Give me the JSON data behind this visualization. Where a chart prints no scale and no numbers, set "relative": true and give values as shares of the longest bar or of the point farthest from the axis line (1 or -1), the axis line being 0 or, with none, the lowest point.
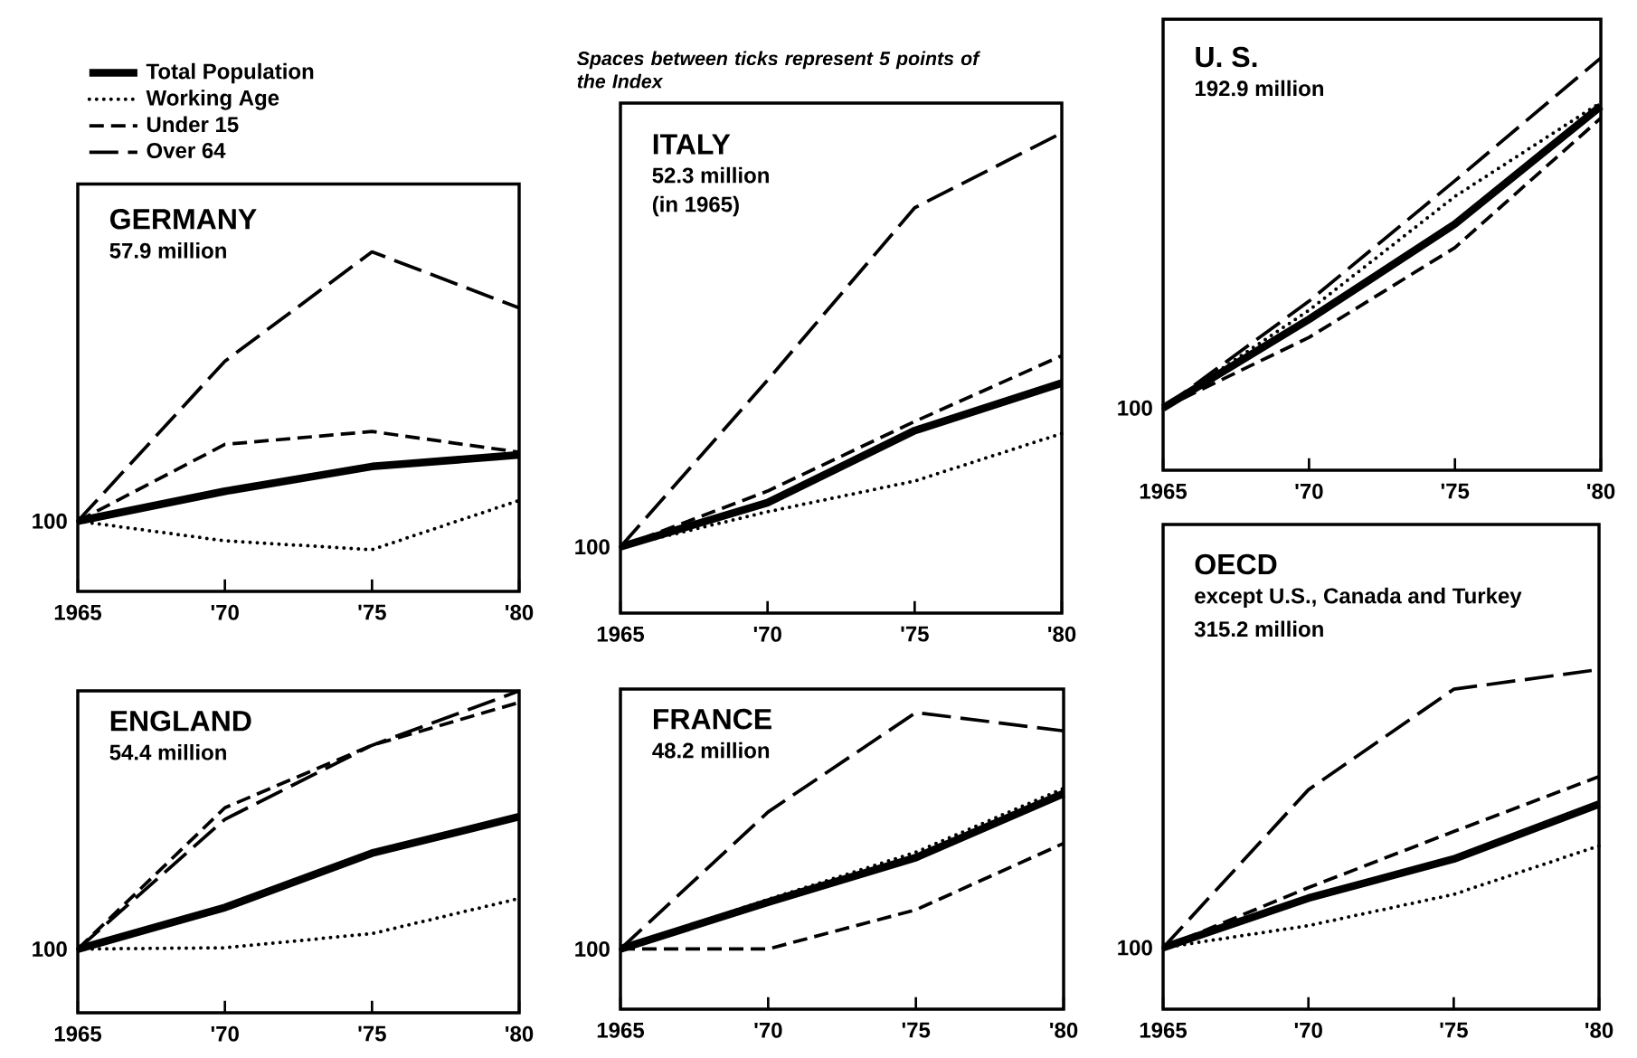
{
  "chart_data": [
    {
      "type": "line",
      "title": "GERMANY",
      "relative": true,
      "legend": "top left",
      "annotations": [
        "57.9 million",
        "100"
      ],
      "x": [
        1965,
        1970,
        1975,
        1980
      ],
      "xlim": [
        1965,
        1980
      ],
      "xticks": [
        1965,
        {
          "value": 1970,
          "label": "'70"
        },
        {
          "value": 1975,
          "label": "'75"
        },
        {
          "value": 1980,
          "label": "'80"
        }
      ],
      "series": [
        {
          "name": "Total Population",
          "color": "#000000",
          "line_style": "solid",
          "values": [
            0.207,
            0.295,
            0.368,
            0.402
          ]
        },
        {
          "name": "Working Age",
          "color": "#000000",
          "line_style": "dotted",
          "values": [
            0.207,
            0.149,
            0.123,
            0.268
          ]
        },
        {
          "name": "Under 15",
          "color": "#000000",
          "line_style": "dashed",
          "values": [
            0.207,
            0.433,
            0.471,
            0.41
          ]
        },
        {
          "name": "Over 64",
          "color": "#000000",
          "line_style": "dashed",
          "values": [
            0.207,
            0.678,
            1,
            0.835
          ]
        }
      ]
    },
    {
      "type": "line",
      "title": "ITALY",
      "relative": true,
      "subtitle": "Spaces between ticks represent 5 points of the Index",
      "annotations": [
        "52.3 million",
        "(in 1965)",
        "100"
      ],
      "x": [
        1965,
        1970,
        1975,
        1980
      ],
      "xlim": [
        1965,
        1980
      ],
      "xticks": [
        1965,
        {
          "value": 1970,
          "label": "'70"
        },
        {
          "value": 1975,
          "label": "'75"
        },
        {
          "value": 1980,
          "label": "'80"
        }
      ],
      "series": [
        {
          "color": "#000000",
          "line_style": "solid",
          "values": [
            0.138,
            0.23,
            0.38,
            0.479
          ]
        },
        {
          "color": "#000000",
          "line_style": "dotted",
          "values": [
            0.138,
            0.211,
            0.275,
            0.374
          ]
        },
        {
          "color": "#000000",
          "line_style": "dashed",
          "values": [
            0.138,
            0.254,
            0.399,
            0.536
          ]
        },
        {
          "color": "#000000",
          "line_style": "dashed",
          "values": [
            0.138,
            0.485,
            0.844,
            1
          ]
        }
      ]
    },
    {
      "type": "line",
      "title": "U. S.",
      "relative": true,
      "annotations": [
        "192.9 million",
        "100"
      ],
      "x": [
        1965,
        1970,
        1975,
        1980
      ],
      "xlim": [
        1965,
        1980
      ],
      "xticks": [
        1965,
        {
          "value": 1970,
          "label": "'70"
        },
        {
          "value": 1975,
          "label": "'75"
        },
        {
          "value": 1980,
          "label": "'80"
        }
      ],
      "series": [
        {
          "color": "#000000",
          "line_style": "solid",
          "values": [
            0.151,
            0.366,
            0.597,
            0.883
          ]
        },
        {
          "color": "#000000",
          "line_style": "dotted",
          "values": [
            0.151,
            0.388,
            0.664,
            0.892
          ]
        },
        {
          "color": "#000000",
          "line_style": "dashed",
          "values": [
            0.151,
            0.322,
            0.54,
            0.854
          ]
        },
        {
          "color": "#000000",
          "line_style": "dashed",
          "values": [
            0.151,
            0.41,
            0.702,
            1
          ]
        }
      ]
    },
    {
      "type": "line",
      "title": "ENGLAND",
      "relative": true,
      "annotations": [
        "54.4 million",
        "100"
      ],
      "x": [
        1965,
        1970,
        1975,
        1980
      ],
      "xlim": [
        1965,
        1980
      ],
      "xticks": [
        1965,
        {
          "value": 1970,
          "label": "'70"
        },
        {
          "value": 1975,
          "label": "'75"
        },
        {
          "value": 1980,
          "label": "'80"
        }
      ],
      "series": [
        {
          "color": "#000000",
          "line_style": "solid",
          "values": [
            0.198,
            0.327,
            0.496,
            0.609
          ]
        },
        {
          "color": "#000000",
          "line_style": "dotted",
          "values": [
            0.198,
            0.202,
            0.246,
            0.355
          ]
        },
        {
          "color": "#000000",
          "line_style": "dashed",
          "values": [
            0.198,
            0.637,
            0.831,
            0.964
          ]
        },
        {
          "color": "#000000",
          "line_style": "dashed",
          "values": [
            0.198,
            0.601,
            0.831,
            1
          ]
        }
      ]
    },
    {
      "type": "line",
      "title": "FRANCE",
      "relative": true,
      "annotations": [
        "48.2 million",
        "100"
      ],
      "x": [
        1965,
        1970,
        1975,
        1980
      ],
      "xlim": [
        1965,
        1980
      ],
      "xticks": [
        1965,
        {
          "value": 1970,
          "label": "'70"
        },
        {
          "value": 1975,
          "label": "'75"
        },
        {
          "value": 1980,
          "label": "'80"
        }
      ],
      "series": [
        {
          "color": "#000000",
          "line_style": "solid",
          "values": [
            0.203,
            0.361,
            0.511,
            0.727
          ]
        },
        {
          "color": "#000000",
          "line_style": "dotted",
          "values": [
            0.203,
            0.37,
            0.529,
            0.744
          ]
        },
        {
          "color": "#000000",
          "line_style": "dashed",
          "values": [
            0.203,
            0.203,
            0.335,
            0.559
          ]
        },
        {
          "color": "#000000",
          "line_style": "dashed",
          "values": [
            0.203,
            0.665,
            1,
            0.938
          ]
        }
      ]
    },
    {
      "type": "line",
      "title": "OECD",
      "relative": true,
      "annotations": [
        "except U.S., Canada and Turkey",
        "315.2 million",
        "100"
      ],
      "x": [
        1965,
        1970,
        1975,
        1980
      ],
      "xlim": [
        1965,
        1980
      ],
      "xticks": [
        1965,
        {
          "value": 1970,
          "label": "'70"
        },
        {
          "value": 1975,
          "label": "'75"
        },
        {
          "value": 1980,
          "label": "'80"
        }
      ],
      "series": [
        {
          "color": "#000000",
          "line_style": "solid",
          "values": [
            0.181,
            0.327,
            0.442,
            0.604
          ]
        },
        {
          "color": "#000000",
          "line_style": "dotted",
          "values": [
            0.181,
            0.246,
            0.338,
            0.481
          ]
        },
        {
          "color": "#000000",
          "line_style": "dashed",
          "values": [
            0.181,
            0.358,
            0.523,
            0.685
          ]
        },
        {
          "color": "#000000",
          "line_style": "dashed",
          "values": [
            0.181,
            0.646,
            0.942,
            1
          ]
        }
      ]
    }
  ]
}
